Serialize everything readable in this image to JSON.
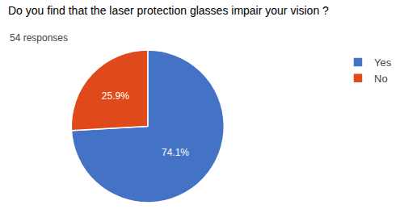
{
  "chart_data": {
    "type": "pie",
    "title": "Do you find that the laser protection glasses impair your vision ?",
    "subtitle": "54 responses",
    "categories": [
      "Yes",
      "No"
    ],
    "values": [
      74.1,
      25.9
    ],
    "value_labels": [
      "74.1%",
      "25.9%"
    ],
    "colors": [
      "#4472C4",
      "#E04A1A"
    ],
    "data_labels": true,
    "legend": "upper right"
  }
}
